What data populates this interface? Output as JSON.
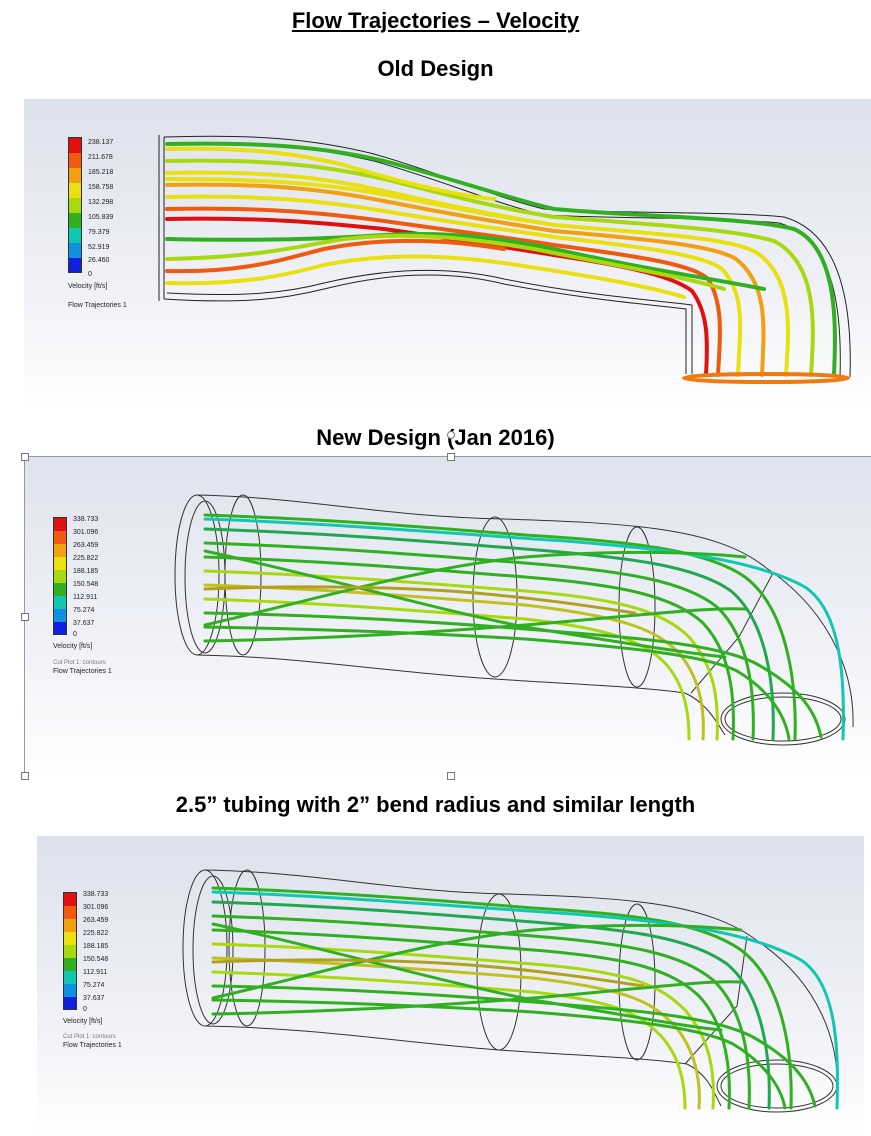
{
  "title": "Flow Trajectories – Velocity",
  "sections": [
    {
      "heading": "Old Design",
      "legend": {
        "values": [
          "238.137",
          "211.678",
          "185.218",
          "158.758",
          "132.298",
          "105.839",
          "79.379",
          "52.919",
          "26.460",
          "0"
        ],
        "unit_label": "Velocity [ft/s]",
        "trajectory_label": "Flow Trajectories 1"
      }
    },
    {
      "heading": "New Design (Jan 2016)",
      "legend": {
        "values": [
          "338.733",
          "301.096",
          "263.459",
          "225.822",
          "188.185",
          "150.548",
          "112.911",
          "75.274",
          "37.637",
          "0"
        ],
        "unit_label": "Velocity [ft/s]",
        "cut_plot_label": "Cut Plot 1: contours",
        "trajectory_label": "Flow Trajectories 1"
      }
    },
    {
      "heading": "2.5” tubing with 2” bend radius and similar length",
      "legend": {
        "values": [
          "338.733",
          "301.096",
          "263.459",
          "225.822",
          "188.185",
          "150.548",
          "112.911",
          "75.274",
          "37.637",
          "0"
        ],
        "unit_label": "Velocity [ft/s]",
        "cut_plot_label": "Cut Plot 1: contours",
        "trajectory_label": "Flow Trajectories 1"
      }
    }
  ],
  "colors": {
    "scale": [
      "#e01010",
      "#f05a10",
      "#f0a010",
      "#e8e010",
      "#a8d810",
      "#30b020",
      "#10c8b0",
      "#1090e0",
      "#1020e0"
    ]
  }
}
